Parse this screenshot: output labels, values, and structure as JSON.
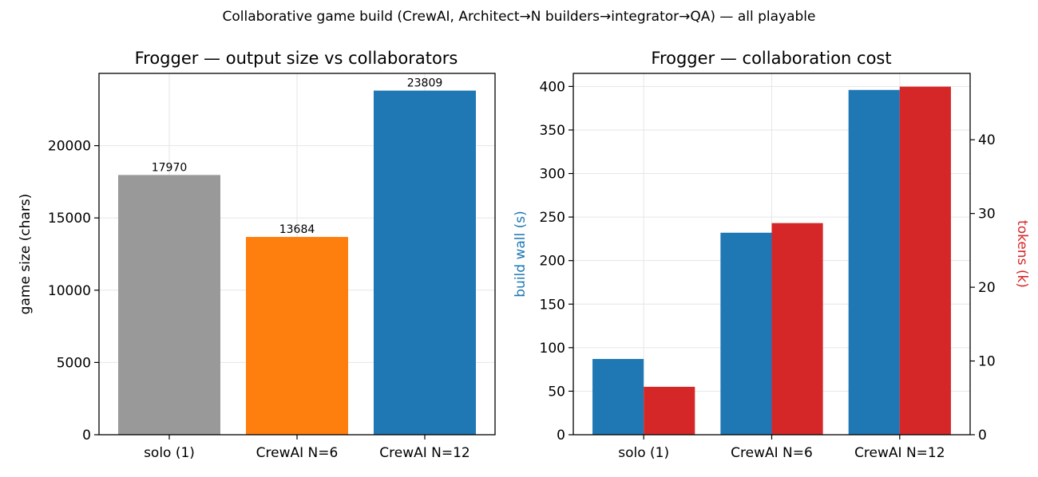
{
  "figure": {
    "suptitle": "Collaborative game build (CrewAI, Architect→N builders→integrator→QA) — all playable"
  },
  "chart_data": [
    {
      "type": "bar",
      "title": "Frogger — output size vs collaborators",
      "xlabel": "",
      "ylabel": "game size (chars)",
      "categories": [
        "solo (1)",
        "CrewAI N=6",
        "CrewAI N=12"
      ],
      "values": [
        17970,
        13684,
        23809
      ],
      "bar_colors": [
        "#999999",
        "#ff7f0e",
        "#1f77b4"
      ],
      "data_labels": [
        "17970",
        "13684",
        "23809"
      ],
      "ylim": [
        0,
        25000
      ],
      "yticks": [
        0,
        5000,
        10000,
        15000,
        20000
      ],
      "grid": true
    },
    {
      "type": "bar",
      "title": "Frogger — collaboration cost",
      "xlabel": "",
      "categories": [
        "solo (1)",
        "CrewAI N=6",
        "CrewAI N=12"
      ],
      "grid": true,
      "left_axis": {
        "label": "build wall (s)",
        "color": "#1f77b4",
        "ylim": [
          0,
          415
        ],
        "ticks": [
          0,
          50,
          100,
          150,
          200,
          250,
          300,
          350,
          400
        ]
      },
      "right_axis": {
        "label": "tokens (k)",
        "color": "#d62728",
        "ylim": [
          0,
          49
        ],
        "ticks": [
          0,
          10,
          20,
          30,
          40
        ]
      },
      "series": [
        {
          "values": [
            87,
            232,
            396
          ],
          "axis": "left",
          "color": "#1f77b4"
        },
        {
          "values": [
            6.5,
            28.7,
            47.2
          ],
          "axis": "right",
          "color": "#d62728"
        }
      ]
    }
  ]
}
